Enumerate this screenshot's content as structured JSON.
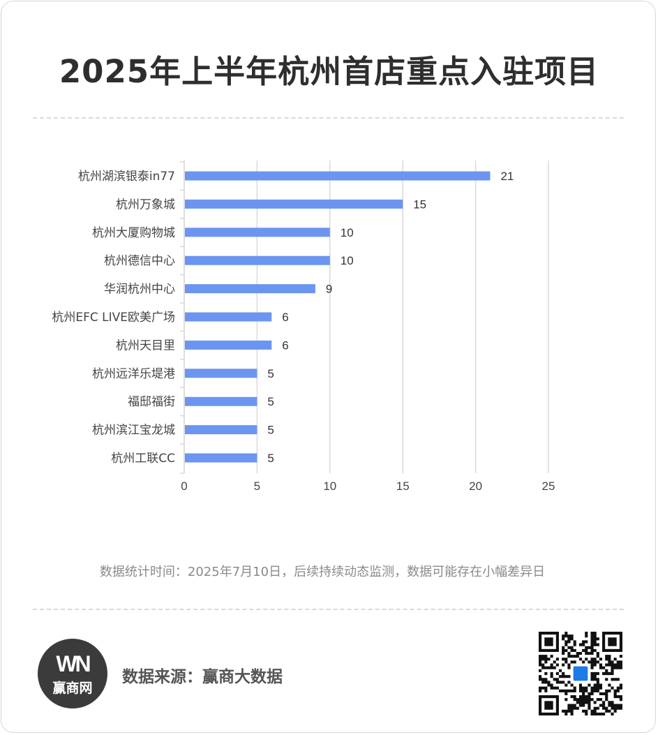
{
  "title": "2025年上半年杭州首店重点入驻项目",
  "note": "数据统计时间：2025年7月10日，后续持续动态监测，数据可能存在小幅差异日",
  "footer": {
    "logo_mark": "WN",
    "logo_name": "赢商网",
    "source": "数据来源：赢商大数据"
  },
  "colors": {
    "bar": "#6b95f0",
    "axis_text": "#444444",
    "grid": "#d9d9d9"
  },
  "chart_data": {
    "type": "bar",
    "orientation": "horizontal",
    "categories": [
      "杭州湖滨银泰in77",
      "杭州万象城",
      "杭州大厦购物城",
      "杭州德信中心",
      "华润杭州中心",
      "杭州EFC LIVE欧美广场",
      "杭州天目里",
      "杭州远洋乐堤港",
      "福邸福街",
      "杭州滨江宝龙城",
      "杭州工联CC"
    ],
    "values": [
      21,
      15,
      10,
      10,
      9,
      6,
      6,
      5,
      5,
      5,
      5
    ],
    "xlim": [
      0,
      25
    ],
    "xticks": [
      0,
      5,
      10,
      15,
      20,
      25
    ],
    "grid": true,
    "data_labels": true
  }
}
